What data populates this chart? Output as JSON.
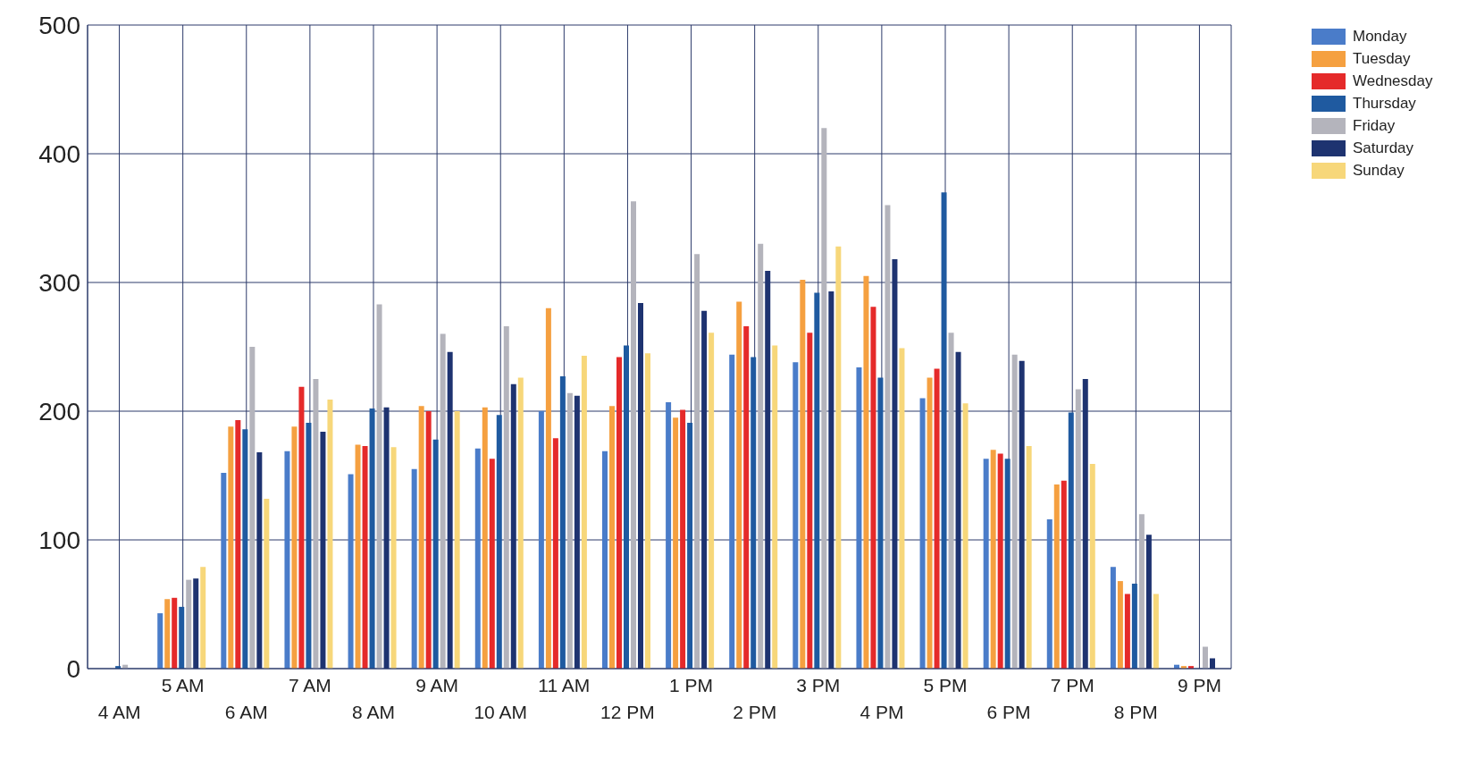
{
  "chart_data": {
    "type": "bar",
    "categories": [
      "4 AM",
      "5 AM",
      "6 AM",
      "7 AM",
      "8 AM",
      "9 AM",
      "10 AM",
      "11 AM",
      "12 PM",
      "1 PM",
      "2 PM",
      "3 PM",
      "4 PM",
      "5 PM",
      "6 PM",
      "7 PM",
      "8 PM",
      "9 PM"
    ],
    "series": [
      {
        "name": "Monday",
        "color": "#4a7cc9",
        "values": [
          0,
          43,
          152,
          169,
          151,
          155,
          171,
          200,
          169,
          207,
          244,
          238,
          234,
          210,
          163,
          116,
          79,
          3
        ]
      },
      {
        "name": "Tuesday",
        "color": "#f5a040",
        "values": [
          0,
          54,
          188,
          188,
          174,
          204,
          203,
          280,
          204,
          195,
          285,
          302,
          305,
          226,
          170,
          143,
          68,
          2
        ]
      },
      {
        "name": "Wednesday",
        "color": "#e52a2a",
        "values": [
          0,
          55,
          193,
          219,
          173,
          200,
          163,
          179,
          242,
          201,
          266,
          261,
          281,
          233,
          167,
          146,
          58,
          2
        ]
      },
      {
        "name": "Thursday",
        "color": "#1f5aa0",
        "values": [
          2,
          48,
          186,
          191,
          202,
          178,
          197,
          227,
          251,
          191,
          242,
          292,
          226,
          370,
          163,
          199,
          66,
          0
        ]
      },
      {
        "name": "Friday",
        "color": "#b4b4bc",
        "values": [
          3,
          69,
          250,
          225,
          283,
          260,
          266,
          214,
          363,
          322,
          330,
          420,
          360,
          261,
          244,
          217,
          120,
          17
        ]
      },
      {
        "name": "Saturday",
        "color": "#1e3370",
        "values": [
          0,
          70,
          168,
          184,
          203,
          246,
          221,
          212,
          284,
          278,
          309,
          293,
          318,
          246,
          239,
          225,
          104,
          8
        ]
      },
      {
        "name": "Sunday",
        "color": "#f7d77a",
        "values": [
          0,
          79,
          132,
          209,
          172,
          200,
          226,
          243,
          245,
          261,
          251,
          328,
          249,
          206,
          173,
          159,
          58,
          0
        ]
      }
    ],
    "ylim": [
      0,
      500
    ],
    "yticks": [
      0,
      100,
      200,
      300,
      400,
      500
    ],
    "grid": true,
    "legend": "top right"
  }
}
